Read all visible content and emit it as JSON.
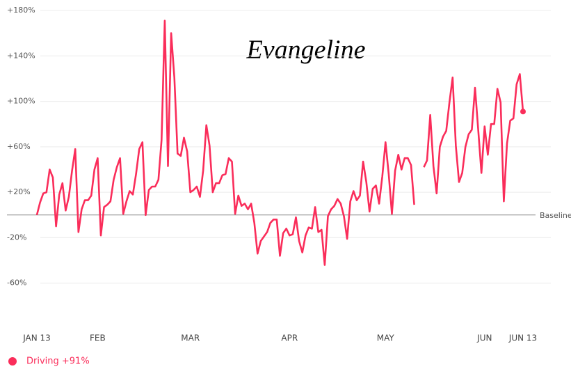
{
  "chart_data": {
    "type": "line",
    "title": "Evangeline",
    "categories": [
      "JAN 13",
      null,
      null,
      null,
      null,
      null,
      null,
      null,
      null,
      null,
      null,
      null,
      null,
      null,
      null,
      null,
      null,
      null,
      null,
      "FEB",
      null,
      null,
      null,
      null,
      null,
      null,
      null,
      null,
      null,
      null,
      null,
      null,
      null,
      null,
      null,
      null,
      null,
      null,
      null,
      null,
      null,
      null,
      null,
      null,
      null,
      null,
      null,
      null,
      "MAR",
      null,
      null,
      null,
      null,
      null,
      null,
      null,
      null,
      null,
      null,
      null,
      null,
      null,
      null,
      null,
      null,
      null,
      null,
      null,
      null,
      null,
      null,
      null,
      null,
      null,
      null,
      null,
      null,
      null,
      null,
      "APR",
      null,
      null,
      null,
      null,
      null,
      null,
      null,
      null,
      null,
      null,
      null,
      null,
      null,
      null,
      null,
      null,
      null,
      null,
      null,
      null,
      null,
      null,
      null,
      null,
      null,
      null,
      null,
      null,
      null,
      "MAY",
      null,
      null,
      null,
      null,
      null,
      null,
      null,
      null,
      null,
      null,
      null,
      null,
      null,
      null,
      null,
      null,
      null,
      null,
      null,
      null,
      null,
      null,
      null,
      null,
      null,
      null,
      null,
      null,
      null,
      null,
      "JUN",
      null,
      null,
      null,
      null,
      null,
      null,
      null,
      null,
      null,
      null,
      null,
      "JUN 13"
    ],
    "series": [
      {
        "name": "Driving +91%",
        "color": "#fa2d5a",
        "values": [
          0,
          11,
          19,
          20,
          40,
          33,
          -10,
          18,
          28,
          4,
          16,
          39,
          58,
          -15,
          5,
          13,
          13,
          17,
          40,
          50,
          -18,
          7,
          9,
          12,
          31,
          42,
          50,
          1,
          12,
          21,
          18,
          36,
          58,
          64,
          0,
          22,
          25,
          25,
          31,
          66,
          171,
          43,
          160,
          121,
          54,
          52,
          68,
          56,
          20,
          22,
          25,
          16,
          39,
          79,
          61,
          20,
          28,
          28,
          35,
          36,
          50,
          47,
          1,
          17,
          8,
          10,
          5,
          10,
          -7,
          -34,
          -23,
          -19,
          -15,
          -7,
          -4,
          -4,
          -36,
          -16,
          -12,
          -18,
          -17,
          -2,
          -23,
          -33,
          -18,
          -11,
          -12,
          7,
          -15,
          -13,
          -44,
          -1,
          5,
          8,
          14,
          10,
          -1,
          -21,
          12,
          21,
          13,
          17,
          47,
          29,
          3,
          23,
          26,
          10,
          34,
          64,
          36,
          1,
          39,
          53,
          40,
          50,
          50,
          44,
          9,
          null,
          null,
          42,
          48,
          88,
          43,
          19,
          60,
          69,
          74,
          99,
          121,
          61,
          29,
          37,
          60,
          71,
          75,
          112,
          75,
          37,
          78,
          53,
          80,
          80,
          111,
          99,
          12,
          63,
          83,
          85,
          115,
          124,
          91
        ]
      }
    ],
    "ylim": [
      -100,
      180
    ],
    "yticks": [
      {
        "value": 180,
        "label": "+180%"
      },
      {
        "value": 140,
        "label": "+140%"
      },
      {
        "value": 100,
        "label": "+100%"
      },
      {
        "value": 60,
        "label": "+60%"
      },
      {
        "value": 20,
        "label": "+20%"
      },
      {
        "value": -20,
        "label": "-20%"
      },
      {
        "value": -60,
        "label": "-60%"
      }
    ],
    "grid": true,
    "baseline": {
      "value": 0,
      "label": "Baseline"
    }
  }
}
